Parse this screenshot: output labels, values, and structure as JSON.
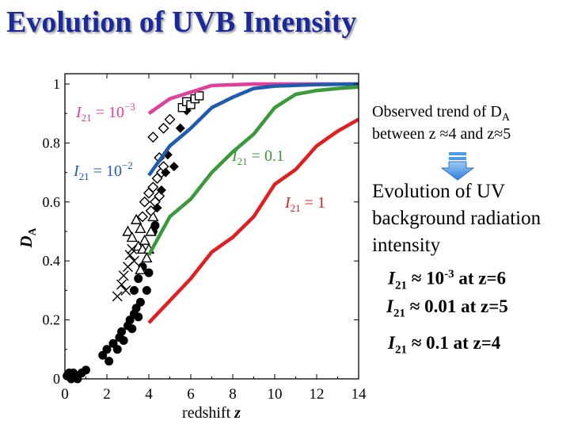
{
  "slide": {
    "title": "Evolution of UVB Intensity",
    "observed_line1": "Observed trend of D",
    "observed_sub": "A",
    "observed_line2": "between z ≈4 and z≈5",
    "evolution_line1": "Evolution of  UV",
    "evolution_line2": "background radiation",
    "evolution_line3": "intensity",
    "results": [
      {
        "symbol": "I",
        "sub": "21",
        "approx": " ≈ 10",
        "sup": "-3",
        "tail": " at z=6"
      },
      {
        "symbol": "I",
        "sub": "21",
        "approx": " ≈ 0.01 at z=5",
        "sup": "",
        "tail": ""
      },
      {
        "symbol": "I",
        "sub": "21",
        "approx": " ≈ 0.1 at z=4",
        "sup": "",
        "tail": ""
      }
    ],
    "arrow_color": "#4a9be8"
  },
  "chart_data": {
    "type": "line",
    "xlabel": "redshift z",
    "ylabel": "DA",
    "xlim": [
      0,
      14
    ],
    "ylim": [
      0,
      1
    ],
    "xticks": [
      0,
      2,
      4,
      6,
      8,
      10,
      12,
      14
    ],
    "yticks": [
      0,
      0.2,
      0.4,
      0.6,
      0.8,
      1
    ],
    "ytick_labels": [
      "0",
      "0.2",
      "0.4",
      "0.6",
      "0.8",
      "1"
    ],
    "series": [
      {
        "name": "I21 = 10^-3",
        "label_base": "10",
        "label_exp": "−3",
        "color": "#e0409a",
        "x": [
          4,
          5,
          7,
          9,
          11,
          13,
          14
        ],
        "y": [
          0.9,
          0.95,
          0.995,
          1.0,
          1.0,
          1.0,
          1.0
        ]
      },
      {
        "name": "I21 = 10^-2",
        "label_base": "10",
        "label_exp": "−2",
        "color": "#1f5cb0",
        "x": [
          4,
          5,
          6,
          7,
          8,
          9,
          10,
          12,
          14
        ],
        "y": [
          0.69,
          0.79,
          0.85,
          0.92,
          0.955,
          0.985,
          0.993,
          0.998,
          1.0
        ]
      },
      {
        "name": "I21 = 0.1",
        "label_base": "0.1",
        "label_exp": "",
        "color": "#3a9a3a",
        "x": [
          4,
          5,
          6,
          7,
          8,
          9,
          10,
          11,
          12,
          13,
          14
        ],
        "y": [
          0.42,
          0.55,
          0.61,
          0.7,
          0.77,
          0.83,
          0.92,
          0.965,
          0.978,
          0.985,
          0.99
        ]
      },
      {
        "name": "I21 = 1",
        "label_base": "1",
        "label_exp": "",
        "color": "#e02020",
        "x": [
          4,
          6,
          7,
          8,
          9,
          10,
          11,
          12,
          13,
          14
        ],
        "y": [
          0.19,
          0.34,
          0.43,
          0.48,
          0.55,
          0.66,
          0.71,
          0.79,
          0.84,
          0.88
        ]
      }
    ],
    "observations": [
      {
        "marker": "filled-circle",
        "points": [
          [
            0.1,
            0.01
          ],
          [
            0.2,
            0.02
          ],
          [
            0.3,
            0.0
          ],
          [
            0.4,
            0.02
          ],
          [
            0.5,
            0.01
          ],
          [
            0.6,
            0.0
          ],
          [
            0.8,
            0.02
          ],
          [
            1.0,
            0.03
          ],
          [
            1.8,
            0.08
          ],
          [
            2.0,
            0.1
          ],
          [
            2.1,
            0.06
          ],
          [
            2.3,
            0.12
          ],
          [
            2.5,
            0.1
          ],
          [
            2.6,
            0.14
          ],
          [
            2.7,
            0.16
          ],
          [
            2.8,
            0.13
          ],
          [
            3.0,
            0.18
          ],
          [
            3.1,
            0.2
          ],
          [
            3.2,
            0.17
          ],
          [
            3.3,
            0.22
          ],
          [
            3.4,
            0.24
          ],
          [
            3.5,
            0.21
          ],
          [
            3.6,
            0.26
          ],
          [
            3.5,
            0.34
          ],
          [
            3.7,
            0.38
          ],
          [
            3.3,
            0.3
          ],
          [
            3.9,
            0.3
          ],
          [
            4.0,
            0.36
          ],
          [
            4.2,
            0.5
          ],
          [
            4.3,
            0.52
          ]
        ]
      },
      {
        "marker": "cross",
        "points": [
          [
            2.5,
            0.28
          ],
          [
            2.7,
            0.32
          ],
          [
            2.8,
            0.35
          ],
          [
            2.9,
            0.3
          ],
          [
            3.0,
            0.38
          ],
          [
            3.1,
            0.42
          ],
          [
            3.2,
            0.44
          ],
          [
            3.3,
            0.4
          ]
        ]
      },
      {
        "marker": "open-triangle",
        "points": [
          [
            3.0,
            0.5
          ],
          [
            3.2,
            0.48
          ],
          [
            3.4,
            0.54
          ],
          [
            3.5,
            0.45
          ],
          [
            3.6,
            0.51
          ],
          [
            3.7,
            0.44
          ],
          [
            3.8,
            0.47
          ],
          [
            3.9,
            0.41
          ],
          [
            4.0,
            0.44
          ],
          [
            4.1,
            0.5
          ],
          [
            4.2,
            0.55
          ],
          [
            3.6,
            0.37
          ]
        ]
      },
      {
        "marker": "open-diamond",
        "points": [
          [
            3.7,
            0.55
          ],
          [
            3.8,
            0.6
          ],
          [
            4.0,
            0.63
          ],
          [
            4.1,
            0.57
          ],
          [
            4.2,
            0.65
          ],
          [
            4.3,
            0.6
          ],
          [
            4.4,
            0.68
          ],
          [
            4.5,
            0.62
          ],
          [
            4.6,
            0.7
          ],
          [
            4.7,
            0.72
          ],
          [
            4.5,
            0.75
          ],
          [
            4.2,
            0.82
          ],
          [
            4.7,
            0.85
          ],
          [
            5.0,
            0.88
          ]
        ]
      },
      {
        "marker": "filled-diamond",
        "points": [
          [
            4.4,
            0.58
          ],
          [
            4.6,
            0.64
          ],
          [
            4.8,
            0.7
          ],
          [
            5.2,
            0.72
          ],
          [
            4.9,
            0.76
          ],
          [
            5.5,
            0.85
          ],
          [
            5.8,
            0.91
          ],
          [
            6.0,
            0.93
          ]
        ]
      },
      {
        "marker": "open-square",
        "points": [
          [
            5.6,
            0.92
          ],
          [
            5.8,
            0.94
          ],
          [
            6.0,
            0.93
          ],
          [
            6.2,
            0.95
          ],
          [
            6.4,
            0.96
          ]
        ]
      }
    ]
  }
}
